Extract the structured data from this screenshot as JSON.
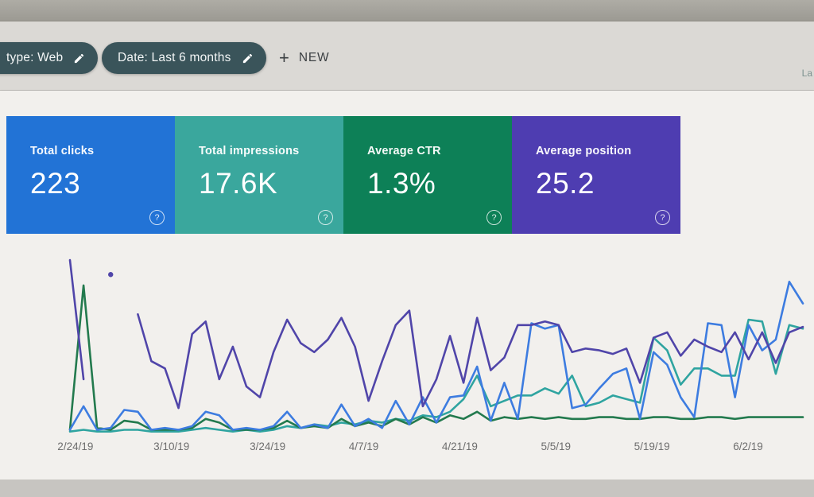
{
  "header": {
    "chips": [
      {
        "label": "type: Web"
      },
      {
        "label": "Date: Last 6 months"
      }
    ],
    "new_button": {
      "plus": "+",
      "label": "NEW"
    },
    "cropped_right_text": "La"
  },
  "cards": [
    {
      "label": "Total clicks",
      "value": "223",
      "color": "#2273d6",
      "help": "?"
    },
    {
      "label": "Total impressions",
      "value": "17.6K",
      "color": "#3aa79d",
      "help": "?"
    },
    {
      "label": "Average CTR",
      "value": "1.3%",
      "color": "#0d8057",
      "help": "?"
    },
    {
      "label": "Average position",
      "value": "25.2",
      "color": "#4e3db1",
      "help": "?"
    }
  ],
  "chart_data": {
    "type": "line",
    "title": "",
    "xlabel": "",
    "ylabel": "",
    "grid": false,
    "legend": "none",
    "x_labels": [
      "2/24/19",
      "3/10/19",
      "3/24/19",
      "4/7/19",
      "4/21/19",
      "5/5/19",
      "5/19/19",
      "6/2/19"
    ],
    "units": "percent of plot height (chart shows no y-axis; each metric independently scaled)",
    "series": [
      {
        "name": "Total impressions",
        "color": "#2fa4a0",
        "values": [
          1,
          2,
          1,
          1,
          2,
          2,
          1,
          1,
          1,
          2,
          3,
          2,
          1,
          2,
          1,
          2,
          4,
          3,
          5,
          4,
          6,
          5,
          7,
          6,
          8,
          7,
          10,
          9,
          12,
          19,
          32,
          15,
          18,
          21,
          21,
          25,
          22,
          32,
          15,
          17,
          21,
          19,
          17,
          53,
          46,
          27,
          36,
          36,
          32,
          32,
          63,
          62,
          33,
          60,
          58
        ]
      },
      {
        "name": "Average CTR",
        "color": "#237a4e",
        "values": [
          2,
          82,
          3,
          2,
          7,
          6,
          2,
          2,
          2,
          3,
          8,
          6,
          2,
          2,
          2,
          3,
          7,
          3,
          4,
          3,
          8,
          4,
          6,
          4,
          8,
          5,
          9,
          6,
          10,
          8,
          12,
          7,
          9,
          8,
          9,
          8,
          9,
          8,
          8,
          9,
          9,
          8,
          8,
          9,
          9,
          8,
          8,
          9,
          9,
          8,
          9,
          9,
          9,
          9,
          9
        ]
      },
      {
        "name": "Total clicks",
        "color": "#3d7ce0",
        "values": [
          2,
          15,
          2,
          3,
          13,
          12,
          2,
          3,
          2,
          4,
          12,
          10,
          2,
          3,
          2,
          4,
          12,
          3,
          5,
          3,
          16,
          4,
          8,
          3,
          18,
          5,
          20,
          6,
          20,
          21,
          37,
          7,
          28,
          8,
          61,
          58,
          60,
          14,
          16,
          25,
          33,
          36,
          8,
          45,
          38,
          20,
          9,
          61,
          60,
          20,
          60,
          46,
          52,
          84,
          72
        ]
      },
      {
        "name": "Average position",
        "color": "#5045a9",
        "values": [
          96,
          30,
          null,
          88,
          null,
          66,
          40,
          36,
          14,
          55,
          62,
          30,
          48,
          26,
          20,
          45,
          63,
          50,
          45,
          52,
          64,
          48,
          18,
          40,
          60,
          68,
          15,
          30,
          54,
          28,
          64,
          35,
          42,
          60,
          60,
          62,
          60,
          45,
          47,
          46,
          44,
          47,
          28,
          53,
          56,
          43,
          52,
          48,
          45,
          56,
          41,
          56,
          39,
          56,
          59
        ]
      }
    ]
  }
}
